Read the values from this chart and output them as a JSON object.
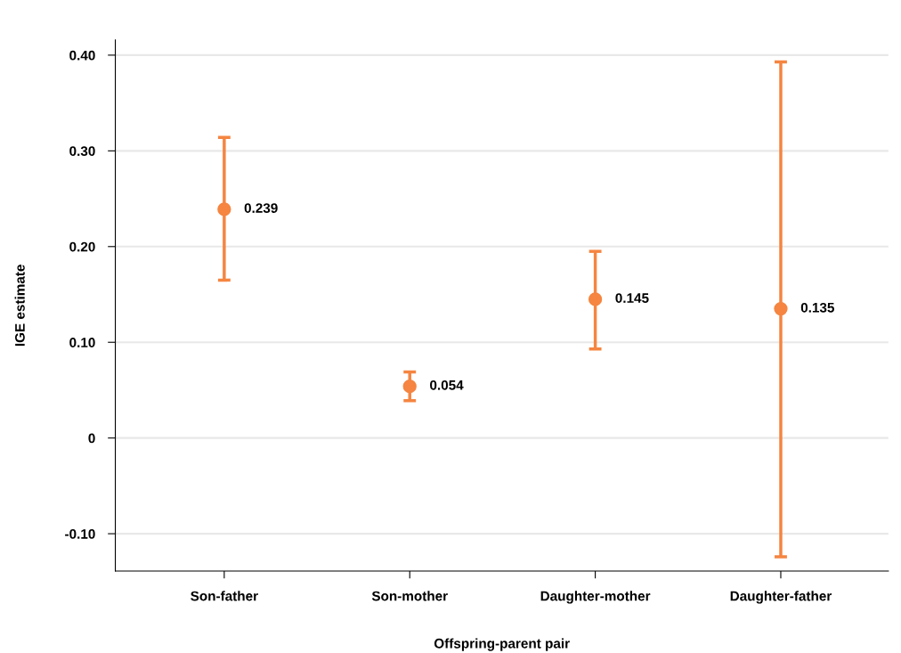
{
  "chart_data": {
    "type": "scatter",
    "xlabel": "Offspring-parent pair",
    "ylabel": "IGE estimate",
    "categories": [
      "Son-father",
      "Son-mother",
      "Daughter-mother",
      "Daughter-father"
    ],
    "series": [
      {
        "color": "#f58540",
        "values": [
          0.239,
          0.054,
          0.145,
          0.135
        ],
        "errors": [
          [
            0.165,
            0.314
          ],
          [
            0.039,
            0.069
          ],
          [
            0.093,
            0.195
          ],
          [
            -0.124,
            0.393
          ]
        ]
      }
    ],
    "data_labels": true,
    "marker": "circle",
    "grid": "y",
    "legend": false,
    "ylim": [
      -0.139,
      0.416
    ],
    "yticks": [
      {
        "value": -0.1,
        "label": "-0.10"
      },
      0,
      {
        "value": 0.1,
        "label": "0.10"
      },
      {
        "value": 0.2,
        "label": "0.20"
      },
      {
        "value": 0.3,
        "label": "0.30"
      },
      {
        "value": 0.4,
        "label": "0.40"
      }
    ]
  }
}
